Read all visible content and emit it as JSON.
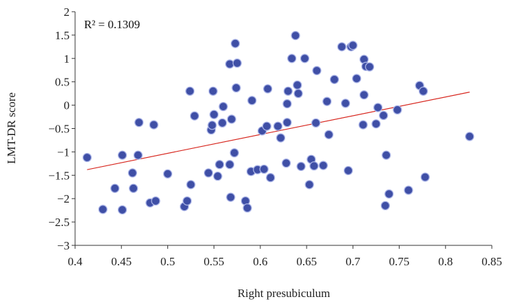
{
  "chart_data": {
    "type": "scatter",
    "xlabel": "Right presubiculum",
    "ylabel": "LMT-DR score",
    "xlim": [
      0.4,
      0.85
    ],
    "ylim": [
      -3,
      2
    ],
    "xticks": [
      "0.4",
      "0.45",
      "0.5",
      "0.55",
      "0.6",
      "0.65",
      "0.7",
      "0.75",
      "0.8",
      "0.85"
    ],
    "yticks": [
      "2",
      "1.5",
      "1",
      "0.5",
      "0",
      "−0.5",
      "−1",
      "−1.5",
      "−2",
      "−2.5",
      "−3"
    ],
    "annotation": "R² = 0.1309",
    "grid": false,
    "legend": "none",
    "colors": {
      "marker_fill": "#3f4fa6",
      "marker_edge": "#a9b3e6",
      "trendline": "#d7261e",
      "axis": "#333333"
    },
    "trendline": {
      "x": [
        0.413,
        0.826
      ],
      "y": [
        -1.38,
        0.28
      ]
    },
    "points": [
      {
        "x": 0.413,
        "y": -1.12
      },
      {
        "x": 0.43,
        "y": -2.23
      },
      {
        "x": 0.443,
        "y": -1.78
      },
      {
        "x": 0.451,
        "y": -1.07
      },
      {
        "x": 0.451,
        "y": -2.24
      },
      {
        "x": 0.462,
        "y": -1.45
      },
      {
        "x": 0.463,
        "y": -1.78
      },
      {
        "x": 0.468,
        "y": -1.07
      },
      {
        "x": 0.469,
        "y": -0.37
      },
      {
        "x": 0.481,
        "y": -2.09
      },
      {
        "x": 0.485,
        "y": -0.42
      },
      {
        "x": 0.487,
        "y": -2.05
      },
      {
        "x": 0.5,
        "y": -1.47
      },
      {
        "x": 0.518,
        "y": -2.17
      },
      {
        "x": 0.521,
        "y": -2.05
      },
      {
        "x": 0.524,
        "y": 0.3
      },
      {
        "x": 0.525,
        "y": -1.7
      },
      {
        "x": 0.529,
        "y": -0.23
      },
      {
        "x": 0.544,
        "y": -1.45
      },
      {
        "x": 0.547,
        "y": -0.53
      },
      {
        "x": 0.548,
        "y": -0.43
      },
      {
        "x": 0.549,
        "y": 0.3
      },
      {
        "x": 0.55,
        "y": -0.2
      },
      {
        "x": 0.554,
        "y": -1.52
      },
      {
        "x": 0.556,
        "y": -1.27
      },
      {
        "x": 0.559,
        "y": -0.38
      },
      {
        "x": 0.56,
        "y": -0.03
      },
      {
        "x": 0.567,
        "y": 0.88
      },
      {
        "x": 0.567,
        "y": -1.27
      },
      {
        "x": 0.568,
        "y": -1.97
      },
      {
        "x": 0.569,
        "y": -0.3
      },
      {
        "x": 0.572,
        "y": -1.02
      },
      {
        "x": 0.573,
        "y": 1.32
      },
      {
        "x": 0.574,
        "y": 0.37
      },
      {
        "x": 0.575,
        "y": 0.9
      },
      {
        "x": 0.584,
        "y": -2.05
      },
      {
        "x": 0.586,
        "y": -2.2
      },
      {
        "x": 0.59,
        "y": -1.42
      },
      {
        "x": 0.591,
        "y": 0.1
      },
      {
        "x": 0.597,
        "y": -1.38
      },
      {
        "x": 0.602,
        "y": -0.55
      },
      {
        "x": 0.604,
        "y": -1.37
      },
      {
        "x": 0.607,
        "y": -0.45
      },
      {
        "x": 0.608,
        "y": 0.35
      },
      {
        "x": 0.611,
        "y": -1.55
      },
      {
        "x": 0.619,
        "y": -0.45
      },
      {
        "x": 0.622,
        "y": -0.7
      },
      {
        "x": 0.628,
        "y": -1.24
      },
      {
        "x": 0.629,
        "y": -0.37
      },
      {
        "x": 0.629,
        "y": 0.03
      },
      {
        "x": 0.63,
        "y": 0.3
      },
      {
        "x": 0.634,
        "y": 1.0
      },
      {
        "x": 0.638,
        "y": 1.49
      },
      {
        "x": 0.64,
        "y": 0.43
      },
      {
        "x": 0.641,
        "y": 0.25
      },
      {
        "x": 0.644,
        "y": -1.31
      },
      {
        "x": 0.648,
        "y": 1.0
      },
      {
        "x": 0.653,
        "y": -1.7
      },
      {
        "x": 0.655,
        "y": -1.16
      },
      {
        "x": 0.658,
        "y": -1.3
      },
      {
        "x": 0.66,
        "y": -0.38
      },
      {
        "x": 0.661,
        "y": 0.74
      },
      {
        "x": 0.668,
        "y": -1.29
      },
      {
        "x": 0.672,
        "y": 0.08
      },
      {
        "x": 0.674,
        "y": -0.63
      },
      {
        "x": 0.68,
        "y": 0.55
      },
      {
        "x": 0.688,
        "y": 1.25
      },
      {
        "x": 0.692,
        "y": 0.04
      },
      {
        "x": 0.695,
        "y": -1.4
      },
      {
        "x": 0.698,
        "y": 1.25
      },
      {
        "x": 0.7,
        "y": 1.28
      },
      {
        "x": 0.704,
        "y": 0.57
      },
      {
        "x": 0.711,
        "y": -0.42
      },
      {
        "x": 0.712,
        "y": 0.98
      },
      {
        "x": 0.712,
        "y": 0.22
      },
      {
        "x": 0.714,
        "y": 0.83
      },
      {
        "x": 0.718,
        "y": 0.82
      },
      {
        "x": 0.725,
        "y": -0.4
      },
      {
        "x": 0.727,
        "y": -0.05
      },
      {
        "x": 0.733,
        "y": -0.22
      },
      {
        "x": 0.735,
        "y": -2.15
      },
      {
        "x": 0.736,
        "y": -1.07
      },
      {
        "x": 0.739,
        "y": -1.9
      },
      {
        "x": 0.748,
        "y": -0.1
      },
      {
        "x": 0.76,
        "y": -1.82
      },
      {
        "x": 0.772,
        "y": 0.42
      },
      {
        "x": 0.776,
        "y": 0.3
      },
      {
        "x": 0.778,
        "y": -1.54
      },
      {
        "x": 0.826,
        "y": -0.67
      }
    ]
  }
}
